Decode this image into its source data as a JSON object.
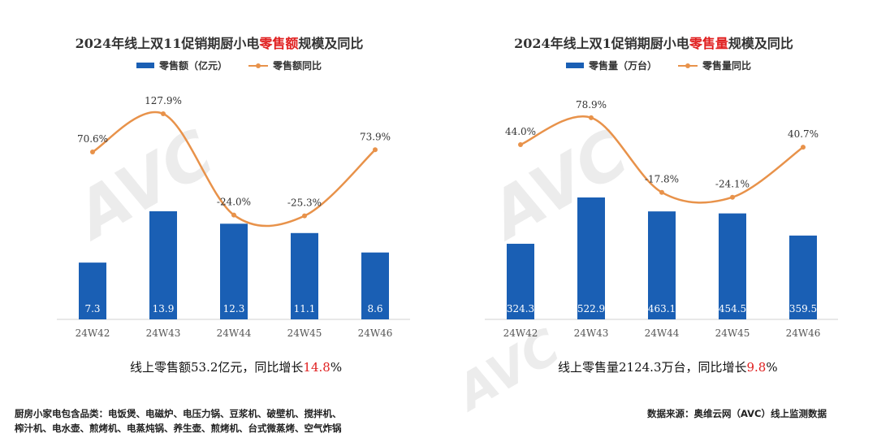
{
  "watermark": "AVC 奥维云网 ALL VIEW CLOUD",
  "colors": {
    "bar": "#1a5fb4",
    "line": "#e8924a",
    "highlight": "#e02020"
  },
  "chart_data": [
    {
      "type": "bar+line",
      "title_pre": "2024年线上双11促销期厨小电",
      "title_hl": "零售额",
      "title_post": "规模及同比",
      "categories": [
        "24W42",
        "24W43",
        "24W44",
        "24W45",
        "24W46"
      ],
      "series": [
        {
          "name": "零售额（亿元）",
          "type": "bar",
          "values": [
            7.3,
            13.9,
            12.3,
            11.1,
            8.6
          ],
          "labels": [
            "7.3",
            "13.9",
            "12.3",
            "11.1",
            "8.6"
          ]
        },
        {
          "name": "零售额同比",
          "type": "line",
          "smooth": true,
          "values": [
            70.6,
            127.9,
            -24.0,
            -25.3,
            73.9
          ],
          "labels": [
            "70.6%",
            "127.9%",
            "-24.0%",
            "-25.3%",
            "73.9%"
          ]
        }
      ],
      "legend": "top",
      "grid": false,
      "summary_pre": "线上零售额53.2亿元，同比增长",
      "summary_hl": "14.8",
      "summary_post": "%"
    },
    {
      "type": "bar+line",
      "title_pre": "2024年线上双1促销期厨小电",
      "title_hl": "零售量",
      "title_post": "规模及同比",
      "categories": [
        "24W42",
        "24W43",
        "24W44",
        "24W45",
        "24W46"
      ],
      "series": [
        {
          "name": "零售量（万台）",
          "type": "bar",
          "values": [
            324.3,
            522.9,
            463.1,
            454.5,
            359.5
          ],
          "labels": [
            "324.3",
            "522.9",
            "463.1",
            "454.5",
            "359.5"
          ]
        },
        {
          "name": "零售量同比",
          "type": "line",
          "smooth": true,
          "values": [
            44.0,
            78.9,
            -17.8,
            -24.1,
            40.7
          ],
          "labels": [
            "44.0%",
            "78.9%",
            "-17.8%",
            "-24.1%",
            "40.7%"
          ]
        }
      ],
      "legend": "top",
      "grid": false,
      "summary_pre": "线上零售量2124.3万台，同比增长",
      "summary_hl": "9.8",
      "summary_post": "%"
    }
  ],
  "footer": {
    "note_line1": "厨房小家电包含品类：电饭煲、电磁炉、电压力锅、豆浆机、破壁机、搅拌机、",
    "note_line2": "榨汁机、电水壶、煎烤机、电蒸炖锅、养生壶、煎烤机、台式微蒸烤、空气炸锅",
    "source": "数据来源：奥维云网（AVC）线上监测数据"
  }
}
